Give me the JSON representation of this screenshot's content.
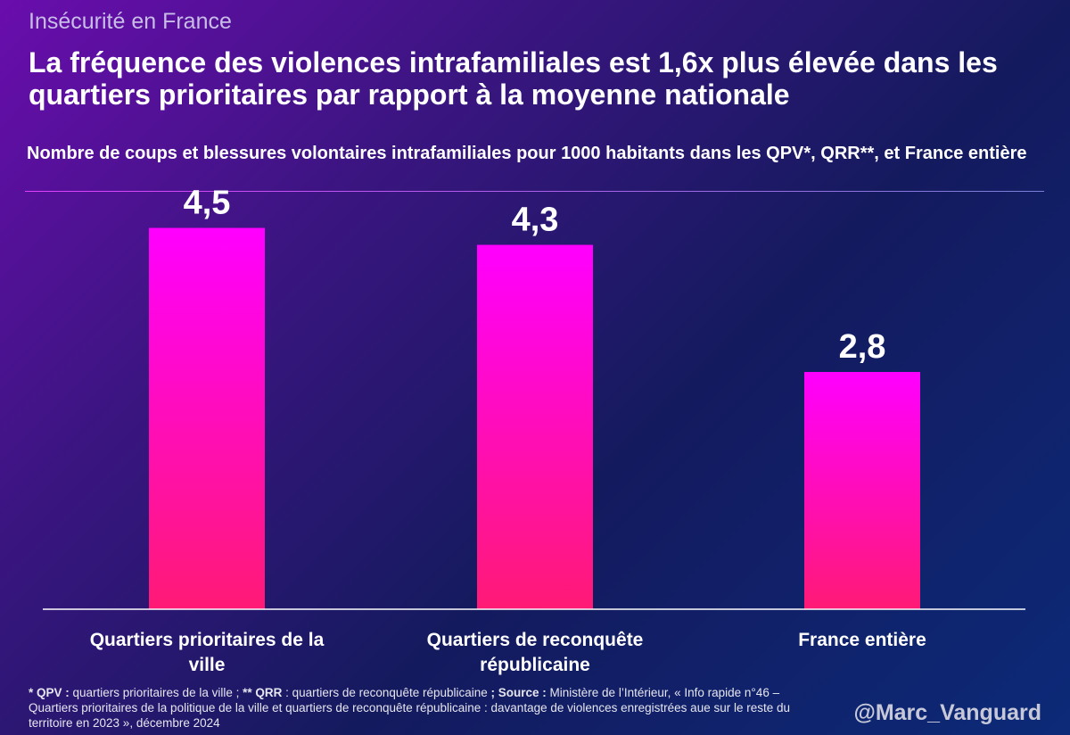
{
  "header": {
    "kicker": "Insécurité en France",
    "headline": "La fréquence des violences intrafamiliales est 1,6x plus élevée dans les quartiers prioritaires par rapport à la moyenne nationale"
  },
  "chart_data": {
    "type": "bar",
    "title": "Nombre de coups et blessures volontaires intrafamiliales pour 1000 habitants dans les QPV*, QRR**, et France entière",
    "categories": [
      "Quartiers prioritaires de la ville",
      "Quartiers de reconquête républicaine",
      "France entière"
    ],
    "values": [
      4.5,
      4.3,
      2.8
    ],
    "value_labels": [
      "4,5",
      "4,3",
      "2,8"
    ],
    "ylim": [
      0,
      5
    ],
    "grid": false,
    "colors": {
      "bar_top": "#ff00ff",
      "bar_bottom": "#ff1a75",
      "axis": "#ffffff"
    }
  },
  "footnote": {
    "qpv_key": "* QPV :",
    "qpv_text": " quartiers prioritaires de la ville ; ",
    "qrr_key": "** QRR",
    "qrr_text": " : quartiers de reconquête républicaine ",
    "source_key": "; Source :",
    "source_text": " Ministère de l’Intérieur, « Info rapide n°46 – Quartiers prioritaires de la politique de la ville et quartiers de reconquête républicaine : davantage de violences enregistrées aue sur le reste du territoire en 2023 », décembre 2024"
  },
  "credit": "@Marc_Vanguard"
}
